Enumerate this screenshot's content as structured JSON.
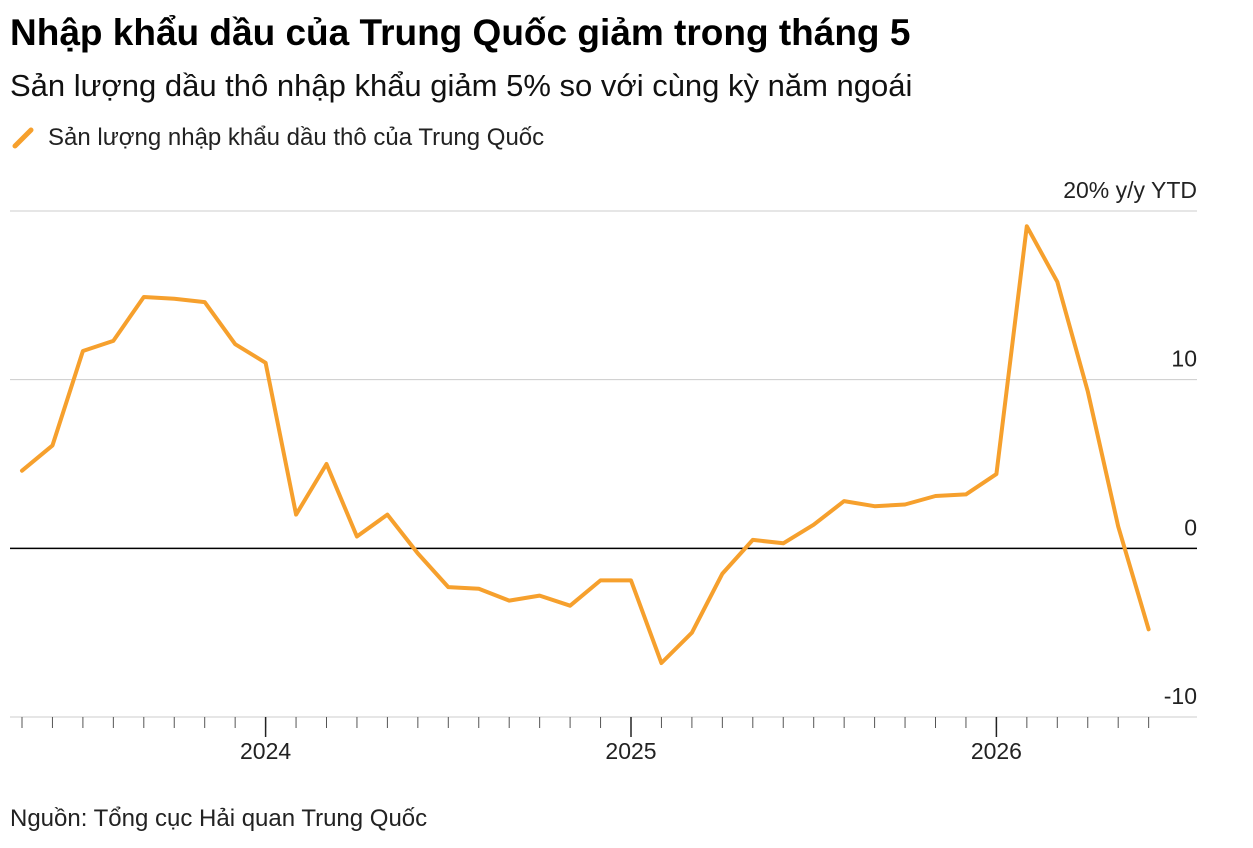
{
  "title": "Nhập khẩu dầu của Trung Quốc giảm trong tháng 5",
  "subtitle": "Sản lượng dầu thô nhập khẩu giảm 5% so với cùng kỳ năm ngoái",
  "legend": {
    "label": "Sản lượng nhập khẩu dầu thô của Trung Quốc",
    "color": "#F6A02D"
  },
  "source": "Nguồn: Tổng cục Hải quan Trung Quốc",
  "chart_data": {
    "type": "line",
    "title": "Nhập khẩu dầu của Trung Quốc giảm trong tháng 5",
    "subtitle": "Sản lượng dầu thô nhập khẩu giảm 5% so với cùng kỳ năm ngoái",
    "ylabel": "20% y/y YTD",
    "ylim": [
      -10,
      20
    ],
    "yticks": [
      {
        "value": 20,
        "label": "20% y/y YTD"
      },
      {
        "value": 10,
        "label": "10"
      },
      {
        "value": 0,
        "label": "0"
      },
      {
        "value": -10,
        "label": "-10"
      }
    ],
    "xlim": [
      "2023-05",
      "2026-06"
    ],
    "xticks": [
      {
        "value": "2024-01",
        "label": "2024"
      },
      {
        "value": "2025-01",
        "label": "2025"
      },
      {
        "value": "2026-01",
        "label": "2026"
      }
    ],
    "grid": true,
    "legend_position": "top-left",
    "series": [
      {
        "name": "Sản lượng nhập khẩu dầu thô của Trung Quốc",
        "color": "#F6A02D",
        "x": [
          "2023-05",
          "2023-06",
          "2023-07",
          "2023-08",
          "2023-09",
          "2023-10",
          "2023-11",
          "2023-12",
          "2024-01",
          "2024-02",
          "2024-03",
          "2024-04",
          "2024-05",
          "2024-06",
          "2024-07",
          "2024-08",
          "2024-09",
          "2024-10",
          "2024-11",
          "2024-12",
          "2025-01",
          "2025-02",
          "2025-03",
          "2025-04",
          "2025-05",
          "2025-06",
          "2025-07",
          "2025-08",
          "2025-09",
          "2025-10",
          "2025-11",
          "2025-12",
          "2026-01",
          "2026-02",
          "2026-03",
          "2026-04",
          "2026-05",
          "2026-06"
        ],
        "values": [
          4.6,
          6.1,
          11.7,
          12.3,
          14.9,
          14.8,
          14.6,
          12.1,
          11.0,
          2.0,
          5.0,
          0.7,
          2.0,
          -0.3,
          -2.3,
          -2.4,
          -3.1,
          -2.8,
          -3.4,
          -1.9,
          -1.9,
          -6.8,
          -5.0,
          -1.5,
          0.5,
          0.3,
          1.4,
          2.8,
          2.5,
          2.6,
          3.1,
          3.2,
          4.4,
          19.1,
          15.8,
          9.3,
          1.3,
          -4.8
        ]
      }
    ]
  }
}
